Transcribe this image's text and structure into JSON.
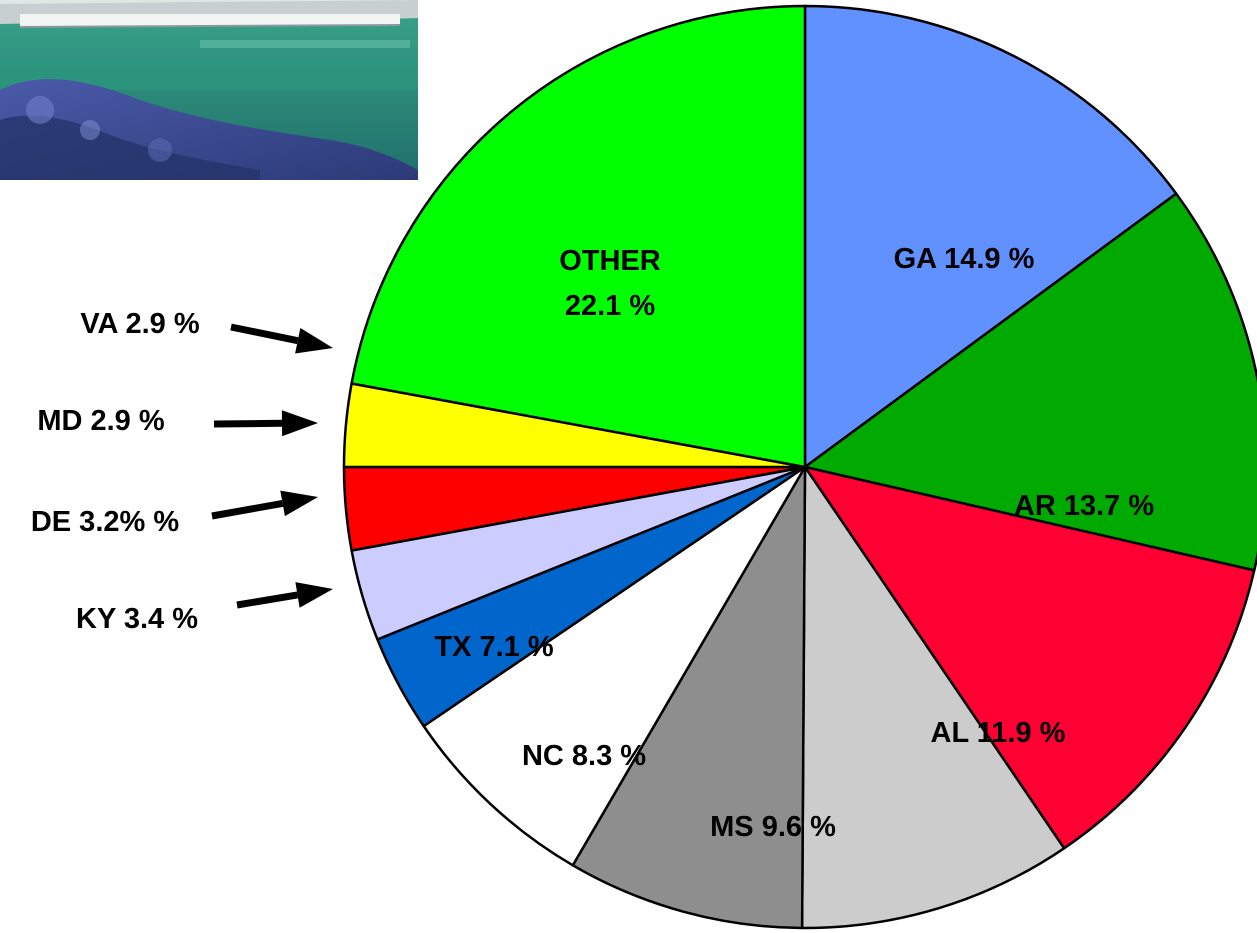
{
  "chart_data": {
    "type": "pie",
    "start_angle_deg": 0,
    "direction": "clockwise",
    "slices": [
      {
        "key": "GA",
        "lines": [
          "GA 14.9 %"
        ],
        "value": 14.9,
        "color": "#6190FF"
      },
      {
        "key": "AR",
        "lines": [
          "AR 13.7 %"
        ],
        "value": 13.7,
        "color": "#00AA00"
      },
      {
        "key": "AL",
        "lines": [
          "AL 11.9 %"
        ],
        "value": 11.9,
        "color": "#FF0033"
      },
      {
        "key": "MS",
        "lines": [
          "MS 9.6 %"
        ],
        "value": 9.6,
        "color": "#CCCCCC"
      },
      {
        "key": "NC",
        "lines": [
          "NC 8.3 %"
        ],
        "value": 8.3,
        "color": "#8E8E8E"
      },
      {
        "key": "TX",
        "lines": [
          "TX 7.1 %"
        ],
        "value": 7.1,
        "color": "#FFFFFF"
      },
      {
        "key": "KY",
        "lines": [
          "KY 3.4 %"
        ],
        "value": 3.4,
        "color": "#0066CC"
      },
      {
        "key": "DE",
        "lines": [
          "DE 3.2% %"
        ],
        "value": 3.2,
        "color": "#CCCCFF"
      },
      {
        "key": "MD",
        "lines": [
          "MD 2.9 %"
        ],
        "value": 2.9,
        "color": "#FF0000"
      },
      {
        "key": "VA",
        "lines": [
          "VA 2.9 %"
        ],
        "value": 2.9,
        "color": "#FFFF00"
      },
      {
        "key": "OTHER",
        "lines": [
          "OTHER",
          "22.1 %"
        ],
        "value": 22.1,
        "color": "#00FF00"
      }
    ]
  },
  "photo": {
    "description_icon": "farm-photo-thumbnail",
    "colors": {
      "sky": "#e8ecec",
      "roof": "#b9c2c4",
      "field": "#2e8f78",
      "foliage": "#3c4f9a"
    }
  }
}
